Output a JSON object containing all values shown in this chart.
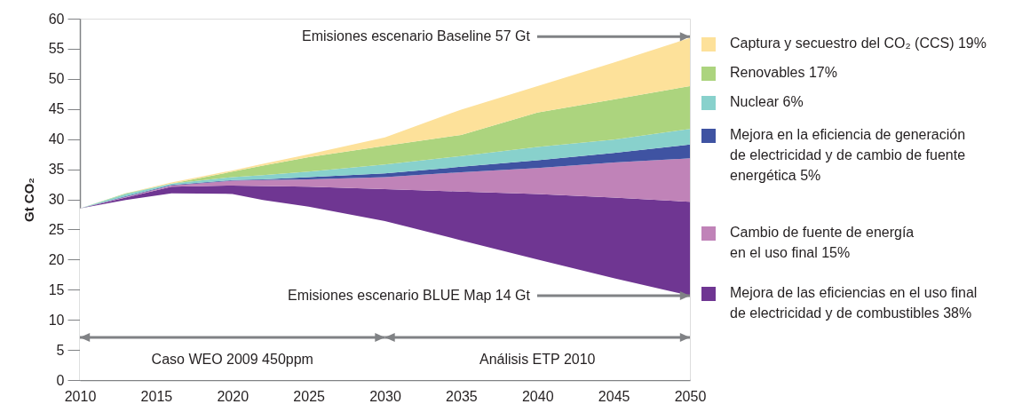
{
  "chart_data": {
    "type": "area",
    "stacked": true,
    "ylabel": "Gt CO₂",
    "legend": "right",
    "grid": false,
    "x": [
      2010,
      2013,
      2016,
      2020,
      2022,
      2025,
      2030,
      2035,
      2040,
      2045,
      2050
    ],
    "xlim": [
      2010,
      2050
    ],
    "xticks": [
      2010,
      2015,
      2020,
      2025,
      2030,
      2035,
      2040,
      2045,
      2050
    ],
    "ylim": [
      0,
      60
    ],
    "yticks": [
      0,
      5,
      10,
      15,
      20,
      25,
      30,
      35,
      40,
      45,
      50,
      55,
      60
    ],
    "series": [
      {
        "color": "#ffffff",
        "values": [
          28.5,
          29.9,
          31.0,
          30.9,
          29.9,
          28.8,
          26.4,
          23.2,
          20.0,
          16.9,
          14.0
        ]
      },
      {
        "name": "Mejora de las eficiencias en el uso final\nde electricidad y de combustibles 38%",
        "color": "#6f3692",
        "values": [
          0,
          0.4,
          1.1,
          1.4,
          2.3,
          3.3,
          5.3,
          8.1,
          10.9,
          13.4,
          15.6
        ]
      },
      {
        "name": "Cambio de fuente de energía\nen el uso final 15%",
        "color": "#c083b8",
        "values": [
          0,
          0.1,
          0.2,
          0.8,
          1.0,
          1.2,
          2.0,
          3.2,
          4.3,
          5.8,
          7.2
        ]
      },
      {
        "name": "Mejora en la eficiencia de generación\nde electricidad y de cambio de fuente\nenergética 5%",
        "color": "#3f53a2",
        "values": [
          0,
          0.1,
          0.1,
          0.1,
          0.1,
          0.4,
          0.6,
          0.9,
          1.3,
          1.6,
          2.3
        ]
      },
      {
        "name": "Nuclear 6%",
        "color": "#88d1cc",
        "values": [
          0,
          0.4,
          0.2,
          0.5,
          0.7,
          0.9,
          1.5,
          1.8,
          2.2,
          2.2,
          2.6
        ]
      },
      {
        "name": "Renovables 17%",
        "color": "#acd47e",
        "values": [
          0,
          0.1,
          0.0,
          0.9,
          1.6,
          2.4,
          3.1,
          3.5,
          5.7,
          6.7,
          7.1
        ]
      },
      {
        "name": "Captura y secuestro del CO₂ (CCS) 19%",
        "color": "#fde19a",
        "values": [
          0,
          0.0,
          0.2,
          0.2,
          0.3,
          0.5,
          1.4,
          4.2,
          4.4,
          6.1,
          8.0
        ]
      }
    ],
    "annotations": [
      {
        "text": "Emisiones escenario Baseline 57 Gt",
        "x": 2050,
        "y": 57
      },
      {
        "text": "Emisiones escenario BLUE Map 14 Gt",
        "x": 2050,
        "y": 14
      },
      "Caso WEO 2009 450ppm",
      "Análisis ETP 2010"
    ]
  }
}
